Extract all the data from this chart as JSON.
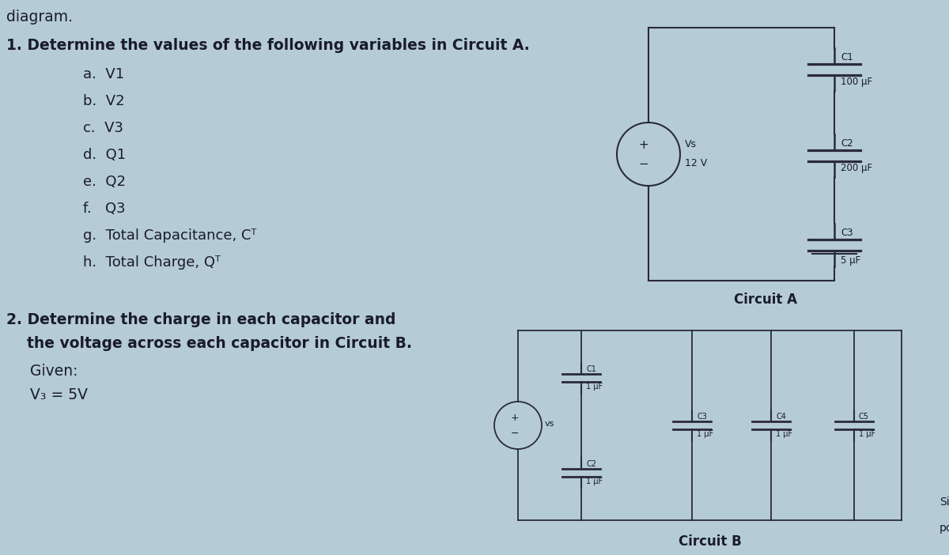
{
  "bg_color": "#b5ccd5",
  "text_color": "#1a1a2e",
  "line_color": "#2a2a3a",
  "title_top": "diagram.",
  "q1_title": "1. Determine the values of the following variables in Circuit A.",
  "q1_items": [
    "a.  V1",
    "b.  V2",
    "c.  V3",
    "d.  Q1",
    "e.  Q2",
    "f.   Q3",
    "g.  Total Capacitance, Cᵀ",
    "h.  Total Charge, Qᵀ"
  ],
  "q2_line1": "2. Determine the charge in each capacitor and",
  "q2_line2": "    the voltage across each capacitor in Circuit B.",
  "q2_given1": "     Given:",
  "q2_given2": "     V₃ = 5V",
  "circuit_a_label": "Circuit A",
  "circuit_b_label": "Circuit B",
  "ca_vs_label1": "Vs",
  "ca_vs_label2": "12 V",
  "ca_c1_label": "C1",
  "ca_c1_value": "100 μF",
  "ca_c2_label": "C2",
  "ca_c2_value": "200 μF",
  "ca_c3_label": "C3",
  "ca_c3_value": "5 μF",
  "cb_c1_label": "C1",
  "cb_c1_value": "1 μF",
  "cb_c2_label": "C2",
  "cb_c2_value": "1 μF",
  "cb_c3_label": "C3",
  "cb_c3_value": "1 μF",
  "cb_c4_label": "C4",
  "cb_c4_value": "1 μF",
  "cb_c5_label": "C5",
  "cb_c5_value": "1 μF"
}
